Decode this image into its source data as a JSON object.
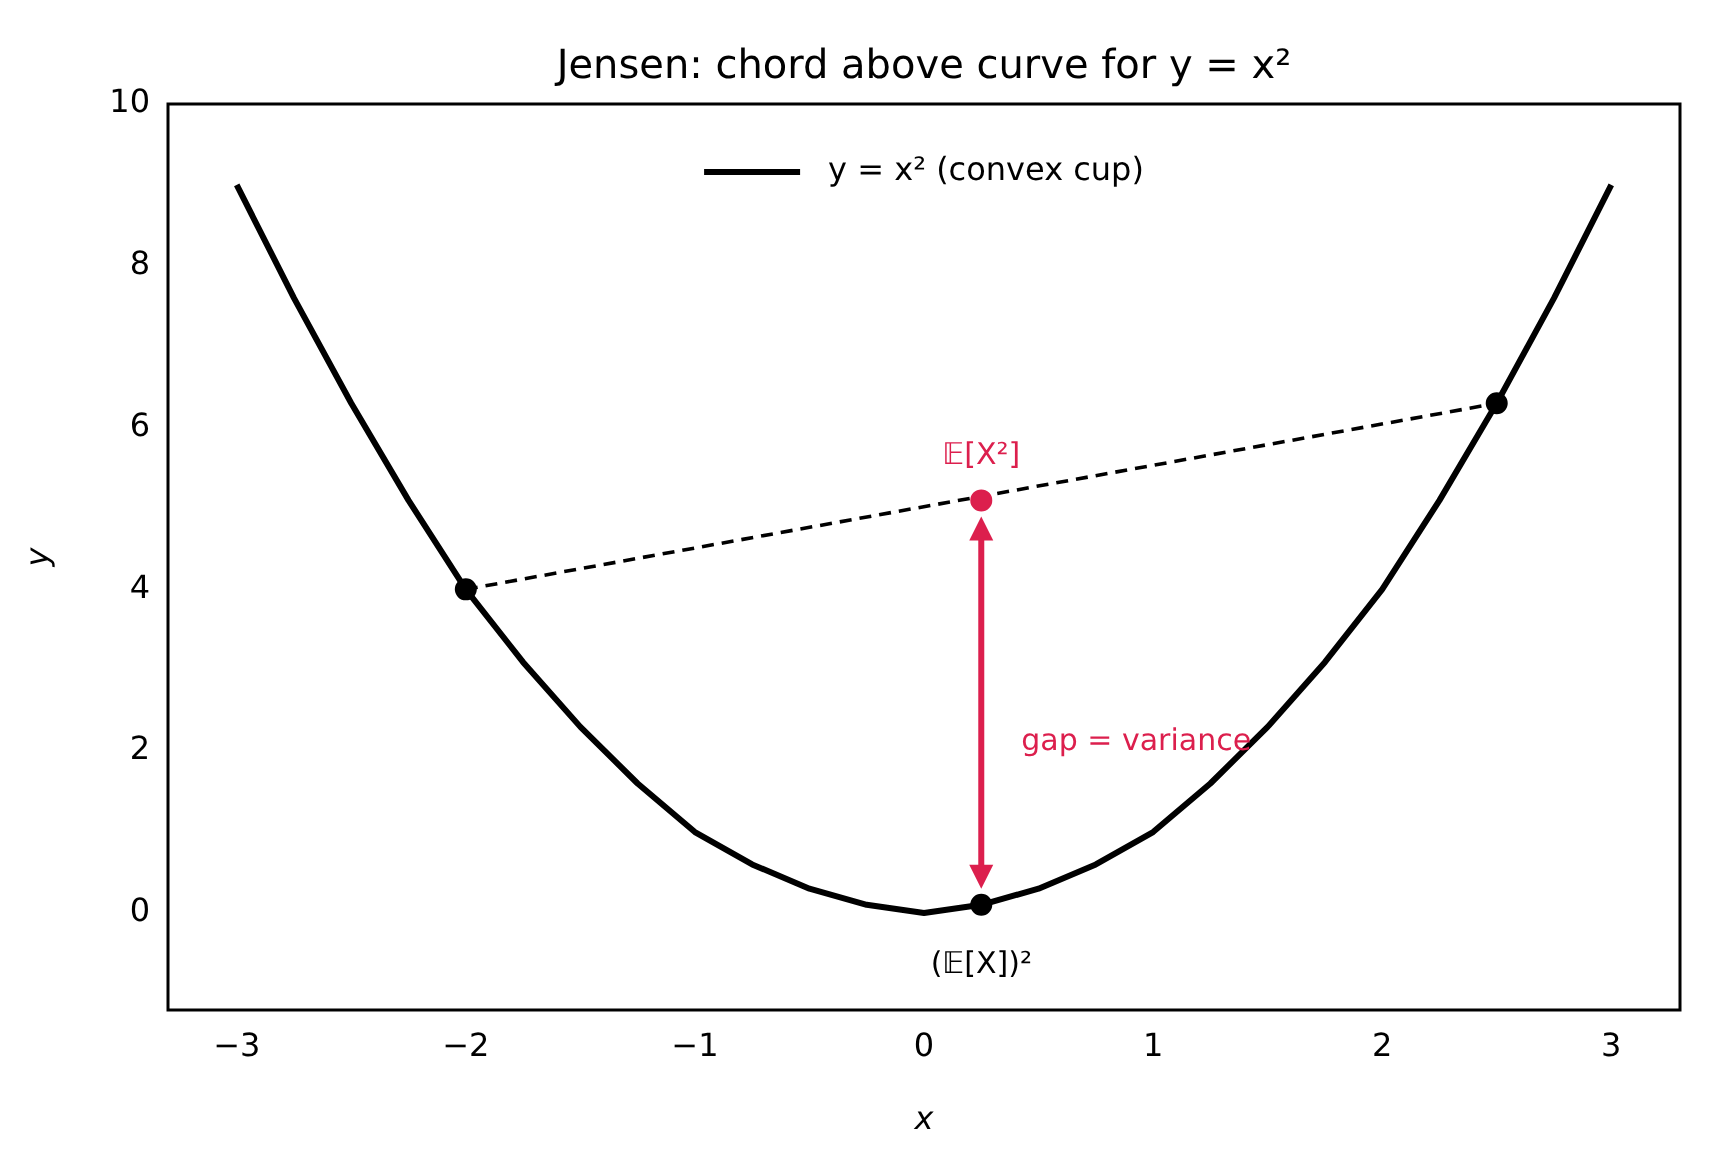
{
  "chart_data": {
    "type": "line",
    "title": "Jensen: chord above curve for y = x²",
    "xlabel": "x",
    "ylabel": "y",
    "xlim": [
      -3.3,
      3.3
    ],
    "xticks": [
      {
        "value": -3,
        "label": "−3"
      },
      {
        "value": -2,
        "label": "−2"
      },
      {
        "value": -1,
        "label": "−1"
      },
      0,
      1,
      2,
      3
    ],
    "ylim": [
      -1.2,
      10
    ],
    "yticks": [
      0,
      2,
      4,
      6,
      8,
      10
    ],
    "grid": false,
    "legend": "top",
    "line_style": "solid",
    "marker": "none",
    "series": [
      {
        "name": "y = x² (convex cup)",
        "color": "#000000",
        "x": [
          -3,
          -2.75,
          -2.5,
          -2.25,
          -2,
          -1.75,
          -1.5,
          -1.25,
          -1,
          -0.75,
          -0.5,
          -0.25,
          0,
          0.25,
          0.5,
          0.75,
          1,
          1.25,
          1.5,
          1.75,
          2,
          2.25,
          2.5,
          2.75,
          3
        ],
        "values": [
          9,
          7.6,
          6.3,
          5.1,
          4,
          3.1,
          2.3,
          1.6,
          1,
          0.6,
          0.3,
          0.1,
          0,
          0.1,
          0.3,
          0.6,
          1,
          1.6,
          2.3,
          3.1,
          4,
          5.1,
          6.3,
          7.6,
          9
        ]
      },
      {
        "type": "line",
        "line_style": "dashed",
        "color": "#000000",
        "x": [
          -2,
          2.5
        ],
        "values": [
          4,
          6.3
        ]
      },
      {
        "type": "scatter",
        "marker": "circle",
        "color": "#000000",
        "x": [
          -2,
          2.5,
          0.25
        ],
        "values": [
          4,
          6.3,
          0.1
        ]
      },
      {
        "type": "scatter",
        "marker": "circle",
        "color": "#dc1f4d",
        "x": [
          0.25
        ],
        "values": [
          5.1
        ]
      }
    ],
    "annotations": [
      "𝔼[X²]",
      "(𝔼[X])²",
      "gap = variance"
    ]
  }
}
